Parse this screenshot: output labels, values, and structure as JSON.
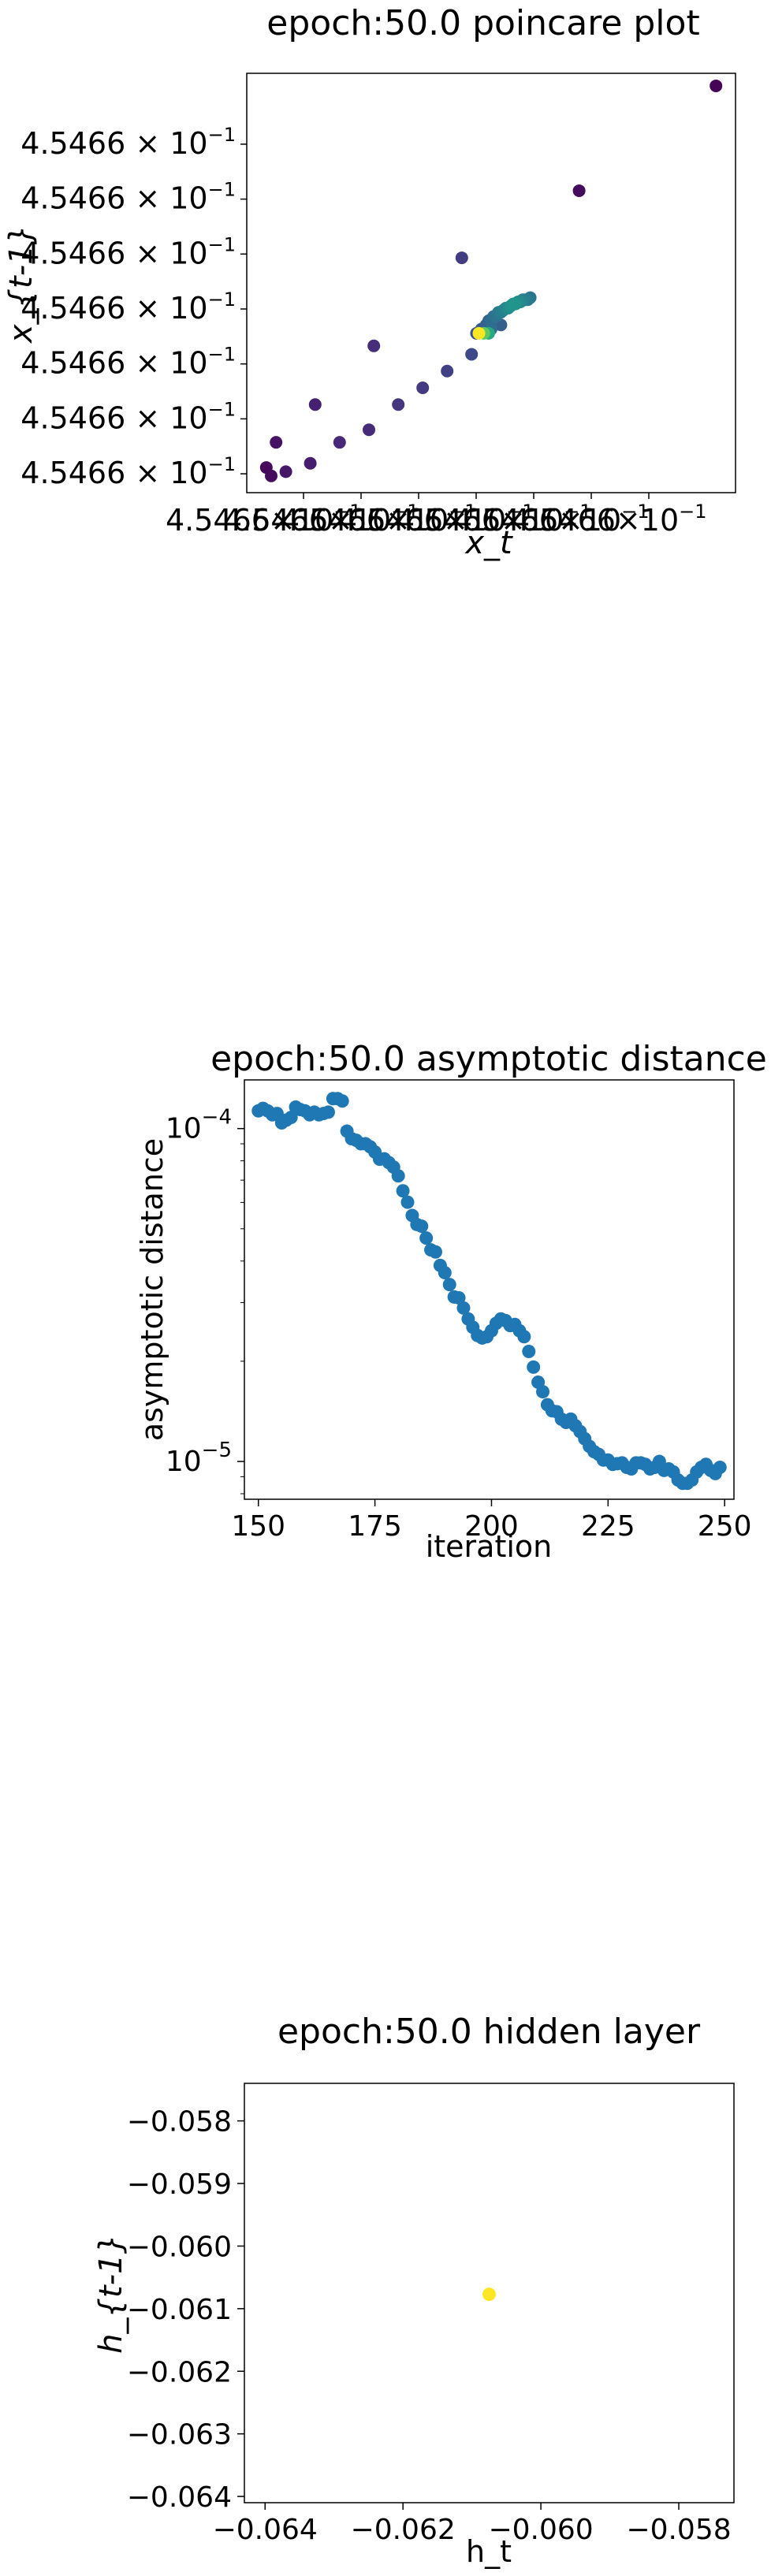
{
  "chart_data": [
    {
      "type": "scatter",
      "title": "epoch:50.0 poincare plot",
      "xlabel": "x_t",
      "ylabel": "x_{t-1}",
      "x_tick_labels": [
        "4.5466×10",
        "4.5466×10",
        "4.5466×10",
        "4.5466×10",
        "4.5466×10",
        "4.5466×10",
        "4.5466×10"
      ],
      "x_tick_exponent": "−1",
      "y_tick_labels": [
        "4.5466 × 10",
        "4.5466 × 10",
        "4.5466 × 10",
        "4.5466 × 10",
        "4.5466 × 10",
        "4.5466 × 10",
        "4.5466 × 10"
      ],
      "y_tick_exponent": "−1",
      "colormap": "viridis",
      "points": [
        {
          "x": 0.04,
          "y": 0.06,
          "c": 0.02
        },
        {
          "x": 0.05,
          "y": 0.04,
          "c": 0.03
        },
        {
          "x": 0.06,
          "y": 0.12,
          "c": 0.05
        },
        {
          "x": 0.08,
          "y": 0.05,
          "c": 0.06
        },
        {
          "x": 0.13,
          "y": 0.07,
          "c": 0.08
        },
        {
          "x": 0.14,
          "y": 0.21,
          "c": 0.09
        },
        {
          "x": 0.19,
          "y": 0.12,
          "c": 0.11
        },
        {
          "x": 0.25,
          "y": 0.15,
          "c": 0.12
        },
        {
          "x": 0.26,
          "y": 0.35,
          "c": 0.13
        },
        {
          "x": 0.31,
          "y": 0.21,
          "c": 0.15
        },
        {
          "x": 0.36,
          "y": 0.25,
          "c": 0.17
        },
        {
          "x": 0.41,
          "y": 0.29,
          "c": 0.19
        },
        {
          "x": 0.44,
          "y": 0.56,
          "c": 0.18
        },
        {
          "x": 0.46,
          "y": 0.33,
          "c": 0.22
        },
        {
          "x": 0.47,
          "y": 0.38,
          "c": 0.25
        },
        {
          "x": 0.48,
          "y": 0.39,
          "c": 0.28
        },
        {
          "x": 0.49,
          "y": 0.4,
          "c": 0.3
        },
        {
          "x": 0.495,
          "y": 0.41,
          "c": 0.32
        },
        {
          "x": 0.5,
          "y": 0.41,
          "c": 0.34
        },
        {
          "x": 0.505,
          "y": 0.42,
          "c": 0.36
        },
        {
          "x": 0.51,
          "y": 0.42,
          "c": 0.38
        },
        {
          "x": 0.515,
          "y": 0.43,
          "c": 0.4
        },
        {
          "x": 0.52,
          "y": 0.43,
          "c": 0.42
        },
        {
          "x": 0.525,
          "y": 0.435,
          "c": 0.44
        },
        {
          "x": 0.53,
          "y": 0.44,
          "c": 0.46
        },
        {
          "x": 0.535,
          "y": 0.44,
          "c": 0.48
        },
        {
          "x": 0.54,
          "y": 0.445,
          "c": 0.5
        },
        {
          "x": 0.545,
          "y": 0.45,
          "c": 0.52
        },
        {
          "x": 0.55,
          "y": 0.45,
          "c": 0.5
        },
        {
          "x": 0.555,
          "y": 0.455,
          "c": 0.48
        },
        {
          "x": 0.56,
          "y": 0.455,
          "c": 0.46
        },
        {
          "x": 0.565,
          "y": 0.46,
          "c": 0.44
        },
        {
          "x": 0.57,
          "y": 0.46,
          "c": 0.42
        },
        {
          "x": 0.575,
          "y": 0.46,
          "c": 0.4
        },
        {
          "x": 0.58,
          "y": 0.465,
          "c": 0.38
        },
        {
          "x": 0.5,
          "y": 0.39,
          "c": 0.36
        },
        {
          "x": 0.52,
          "y": 0.4,
          "c": 0.3
        },
        {
          "x": 0.495,
          "y": 0.38,
          "c": 0.6
        },
        {
          "x": 0.485,
          "y": 0.38,
          "c": 0.75
        },
        {
          "x": 0.475,
          "y": 0.38,
          "c": 1.0
        },
        {
          "x": 0.68,
          "y": 0.72,
          "c": 0.03
        },
        {
          "x": 0.96,
          "y": 0.97,
          "c": 0.01
        }
      ]
    },
    {
      "type": "scatter",
      "title": "epoch:50.0 asymptotic distance",
      "xlabel": "iteration",
      "ylabel": "asymptotic distance",
      "yscale": "log",
      "xlim": [
        147,
        252
      ],
      "ylim": [
        7.7e-06,
        0.00014
      ],
      "x_ticks": [
        150,
        175,
        200,
        225,
        250
      ],
      "y_ticks": [
        {
          "value": 0.0001,
          "base": "10",
          "exp": "−4"
        },
        {
          "value": 1e-05,
          "base": "10",
          "exp": "−5"
        }
      ],
      "color": "#1f77b4",
      "x": [
        150,
        151,
        152,
        153,
        154,
        155,
        156,
        157,
        158,
        159,
        160,
        161,
        162,
        163,
        164,
        165,
        166,
        167,
        168,
        169,
        170,
        171,
        172,
        173,
        174,
        175,
        176,
        177,
        178,
        179,
        180,
        181,
        182,
        183,
        184,
        185,
        186,
        187,
        188,
        189,
        190,
        191,
        192,
        193,
        194,
        195,
        196,
        197,
        198,
        199,
        200,
        201,
        202,
        203,
        204,
        205,
        206,
        207,
        208,
        209,
        210,
        211,
        212,
        213,
        214,
        215,
        216,
        217,
        218,
        219,
        220,
        221,
        222,
        223,
        224,
        225,
        226,
        227,
        228,
        229,
        230,
        231,
        232,
        233,
        234,
        235,
        236,
        237,
        238,
        239,
        240,
        241,
        242,
        243,
        244,
        245,
        246,
        247,
        248,
        249
      ],
      "y": [
        0.000113,
        0.000115,
        0.000113,
        0.00011,
        0.000111,
        0.000104,
        0.000106,
        0.000108,
        0.000116,
        0.000114,
        0.000113,
        0.00011,
        0.000112,
        0.00011,
        0.000111,
        0.000112,
        0.000123,
        0.000123,
        0.000121,
        9.82e-05,
        9.32e-05,
        9.22e-05,
        9e-05,
        9e-05,
        8.81e-05,
        8.5e-05,
        8.09e-05,
        8.11e-05,
        7.9e-05,
        7.66e-05,
        7.21e-05,
        6.5e-05,
        6.01e-05,
        5.48e-05,
        5.15e-05,
        5.09e-05,
        4.69e-05,
        4.32e-05,
        4.26e-05,
        3.88e-05,
        3.69e-05,
        3.4e-05,
        3.12e-05,
        3.1e-05,
        2.89e-05,
        2.68e-05,
        2.53e-05,
        2.39e-05,
        2.35e-05,
        2.37e-05,
        2.47e-05,
        2.6e-05,
        2.68e-05,
        2.65e-05,
        2.56e-05,
        2.58e-05,
        2.47e-05,
        2.37e-05,
        2.14e-05,
        1.92e-05,
        1.73e-05,
        1.62e-05,
        1.48e-05,
        1.42e-05,
        1.41e-05,
        1.34e-05,
        1.31e-05,
        1.34e-05,
        1.28e-05,
        1.23e-05,
        1.17e-05,
        1.11e-05,
        1.07e-05,
        1.05e-05,
        1.01e-05,
        1.01e-05,
        9.8e-06,
        9.85e-06,
        9.9e-06,
        9.6e-06,
        9.5e-06,
        9.9e-06,
        9.9e-06,
        9.8e-06,
        9.5e-06,
        9.6e-06,
        1e-05,
        9.4e-06,
        9.5e-06,
        9.3e-06,
        8.8e-06,
        8.6e-06,
        8.6e-06,
        8.8e-06,
        9.3e-06,
        9.6e-06,
        9.8e-06,
        9.4e-06,
        9.2e-06,
        9.6e-06
      ]
    },
    {
      "type": "scatter",
      "title": "epoch:50.0 hidden layer",
      "xlabel": "h_t",
      "ylabel": "h_{t-1}",
      "xlim": [
        -0.0643,
        -0.0572
      ],
      "ylim": [
        -0.0641,
        -0.0574
      ],
      "x_ticks": [
        -0.064,
        -0.062,
        -0.06,
        -0.058
      ],
      "x_tick_labels": [
        "−0.064",
        "−0.062",
        "−0.060",
        "−0.058"
      ],
      "y_ticks": [
        -0.058,
        -0.059,
        -0.06,
        -0.061,
        -0.062,
        -0.063,
        -0.064
      ],
      "y_tick_labels": [
        "−0.058",
        "−0.059",
        "−0.060",
        "−0.061",
        "−0.062",
        "−0.063",
        "−0.064"
      ],
      "color": "#fde725",
      "points": [
        {
          "x": -0.06075,
          "y": -0.06077
        }
      ]
    }
  ]
}
